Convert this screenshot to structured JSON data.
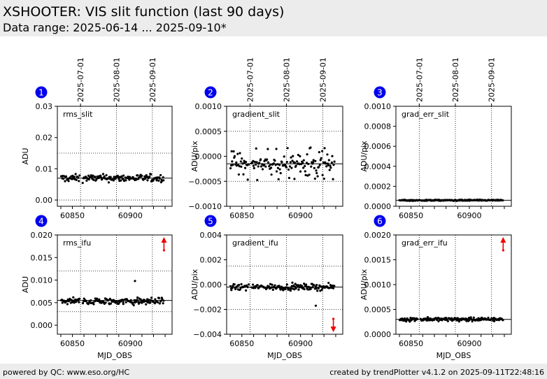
{
  "header": {
    "title": "XSHOOTER: VIS slit function (last 90 days)",
    "subtitle": "Data range: 2025-06-14 ... 2025-09-10*"
  },
  "footer": {
    "left": "powered by QC: www.eso.org/HC",
    "right": "created by trendPlotter v4.1.2 on 2025-09-11T22:48:16"
  },
  "colors": {
    "points": "#000000",
    "badge": "#0000ee",
    "arrow": "#ee0000",
    "grid": "#000000"
  },
  "chart_data": [
    {
      "type": "scatter",
      "panel": "1",
      "label": "rms_slit",
      "ylabel": "ADU",
      "xlabel": "",
      "xlim": [
        60837,
        60936
      ],
      "ylim": [
        -0.002,
        0.03
      ],
      "yticks": [
        "0.03",
        "0.02",
        "0.01",
        "0.00"
      ],
      "ytick_values": [
        0.03,
        0.02,
        0.01,
        0.0
      ],
      "xticks": [
        "60850",
        "60900"
      ],
      "xtick_values": [
        60850,
        60900
      ],
      "top_dates": [
        "2025-07-01",
        "2025-08-01",
        "2025-09-01"
      ],
      "hlines_dotted": [
        0.015,
        0.0
      ],
      "median": 0.007,
      "outlier_arrows": [],
      "x_range": [
        60840,
        60929
      ],
      "center": 0.007,
      "spread": 0.0012
    },
    {
      "type": "scatter",
      "panel": "2",
      "label": "gradient_slit",
      "ylabel": "ADU/pix",
      "xlabel": "",
      "xlim": [
        60837,
        60936
      ],
      "ylim": [
        -0.001,
        0.001
      ],
      "yticks": [
        "0.0010",
        "0.0005",
        "0.0000",
        "−0.0005",
        "−0.0010"
      ],
      "ytick_values": [
        0.001,
        0.0005,
        0.0,
        -0.0005,
        -0.001
      ],
      "xticks": [
        "60850",
        "60900"
      ],
      "xtick_values": [
        60850,
        60900
      ],
      "top_dates": [
        "2025-07-01",
        "2025-08-01",
        "2025-09-01"
      ],
      "hlines_dotted": [
        0.0005,
        -0.0005
      ],
      "median": -0.00015,
      "outlier_arrows": [],
      "x_range": [
        60840,
        60929
      ],
      "center": -0.00015,
      "spread": 0.00015
    },
    {
      "type": "scatter",
      "panel": "3",
      "label": "grad_err_slit",
      "ylabel": "ADU/pix",
      "xlabel": "",
      "xlim": [
        60837,
        60936
      ],
      "ylim": [
        0.0,
        0.001
      ],
      "yticks": [
        "0.0010",
        "0.0008",
        "0.0006",
        "0.0004",
        "0.0002",
        "0.0000"
      ],
      "ytick_values": [
        0.001,
        0.0008,
        0.0006,
        0.0004,
        0.0002,
        0.0
      ],
      "xticks": [
        "60850",
        "60900"
      ],
      "xtick_values": [
        60850,
        60900
      ],
      "top_dates": [
        "2025-07-01",
        "2025-08-01",
        "2025-09-01"
      ],
      "hlines_dotted": [],
      "median": 6e-05,
      "outlier_arrows": [],
      "x_range": [
        60840,
        60929
      ],
      "center": 6e-05,
      "spread": 6e-06
    },
    {
      "type": "scatter",
      "panel": "4",
      "label": "rms_ifu",
      "ylabel": "ADU",
      "xlabel": "MJD_OBS",
      "xlim": [
        60837,
        60936
      ],
      "ylim": [
        -0.002,
        0.02
      ],
      "yticks": [
        "0.020",
        "0.015",
        "0.010",
        "0.005",
        "0.000"
      ],
      "ytick_values": [
        0.02,
        0.015,
        0.01,
        0.005,
        0.0
      ],
      "xticks": [
        "60850",
        "60900"
      ],
      "xtick_values": [
        60850,
        60900
      ],
      "top_dates": [],
      "hlines_dotted": [
        0.012,
        0.003
      ],
      "median": 0.0055,
      "outlier_arrows": [
        {
          "x": 60929,
          "dir": "up"
        }
      ],
      "x_range": [
        60840,
        60929
      ],
      "center": 0.0053,
      "spread": 0.0008
    },
    {
      "type": "scatter",
      "panel": "5",
      "label": "gradient_ifu",
      "ylabel": "ADU/pix",
      "xlabel": "MJD_OBS",
      "xlim": [
        60837,
        60936
      ],
      "ylim": [
        -0.004,
        0.004
      ],
      "yticks": [
        "0.004",
        "0.002",
        "0.000",
        "−0.002",
        "−0.004"
      ],
      "ytick_values": [
        0.004,
        0.002,
        0.0,
        -0.002,
        -0.004
      ],
      "xticks": [
        "60850",
        "60900"
      ],
      "xtick_values": [
        60850,
        60900
      ],
      "top_dates": [],
      "hlines_dotted": [
        0.0015,
        -0.002
      ],
      "median": -0.0002,
      "outlier_arrows": [
        {
          "x": 60928,
          "dir": "down"
        }
      ],
      "x_range": [
        60840,
        60929
      ],
      "center": -0.0002,
      "spread": 0.00025
    },
    {
      "type": "scatter",
      "panel": "6",
      "label": "grad_err_ifu",
      "ylabel": "ADU/pix",
      "xlabel": "MJD_OBS",
      "xlim": [
        60837,
        60936
      ],
      "ylim": [
        0.0,
        0.002
      ],
      "yticks": [
        "0.0020",
        "0.0015",
        "0.0010",
        "0.0005",
        "0.0000"
      ],
      "ytick_values": [
        0.002,
        0.0015,
        0.001,
        0.0005,
        0.0
      ],
      "xticks": [
        "60850",
        "60900"
      ],
      "xtick_values": [
        60850,
        60900
      ],
      "top_dates": [],
      "hlines_dotted": [],
      "median": 0.0003,
      "outlier_arrows": [
        {
          "x": 60929,
          "dir": "up"
        }
      ],
      "x_range": [
        60840,
        60929
      ],
      "center": 0.0003,
      "spread": 4e-05
    }
  ]
}
